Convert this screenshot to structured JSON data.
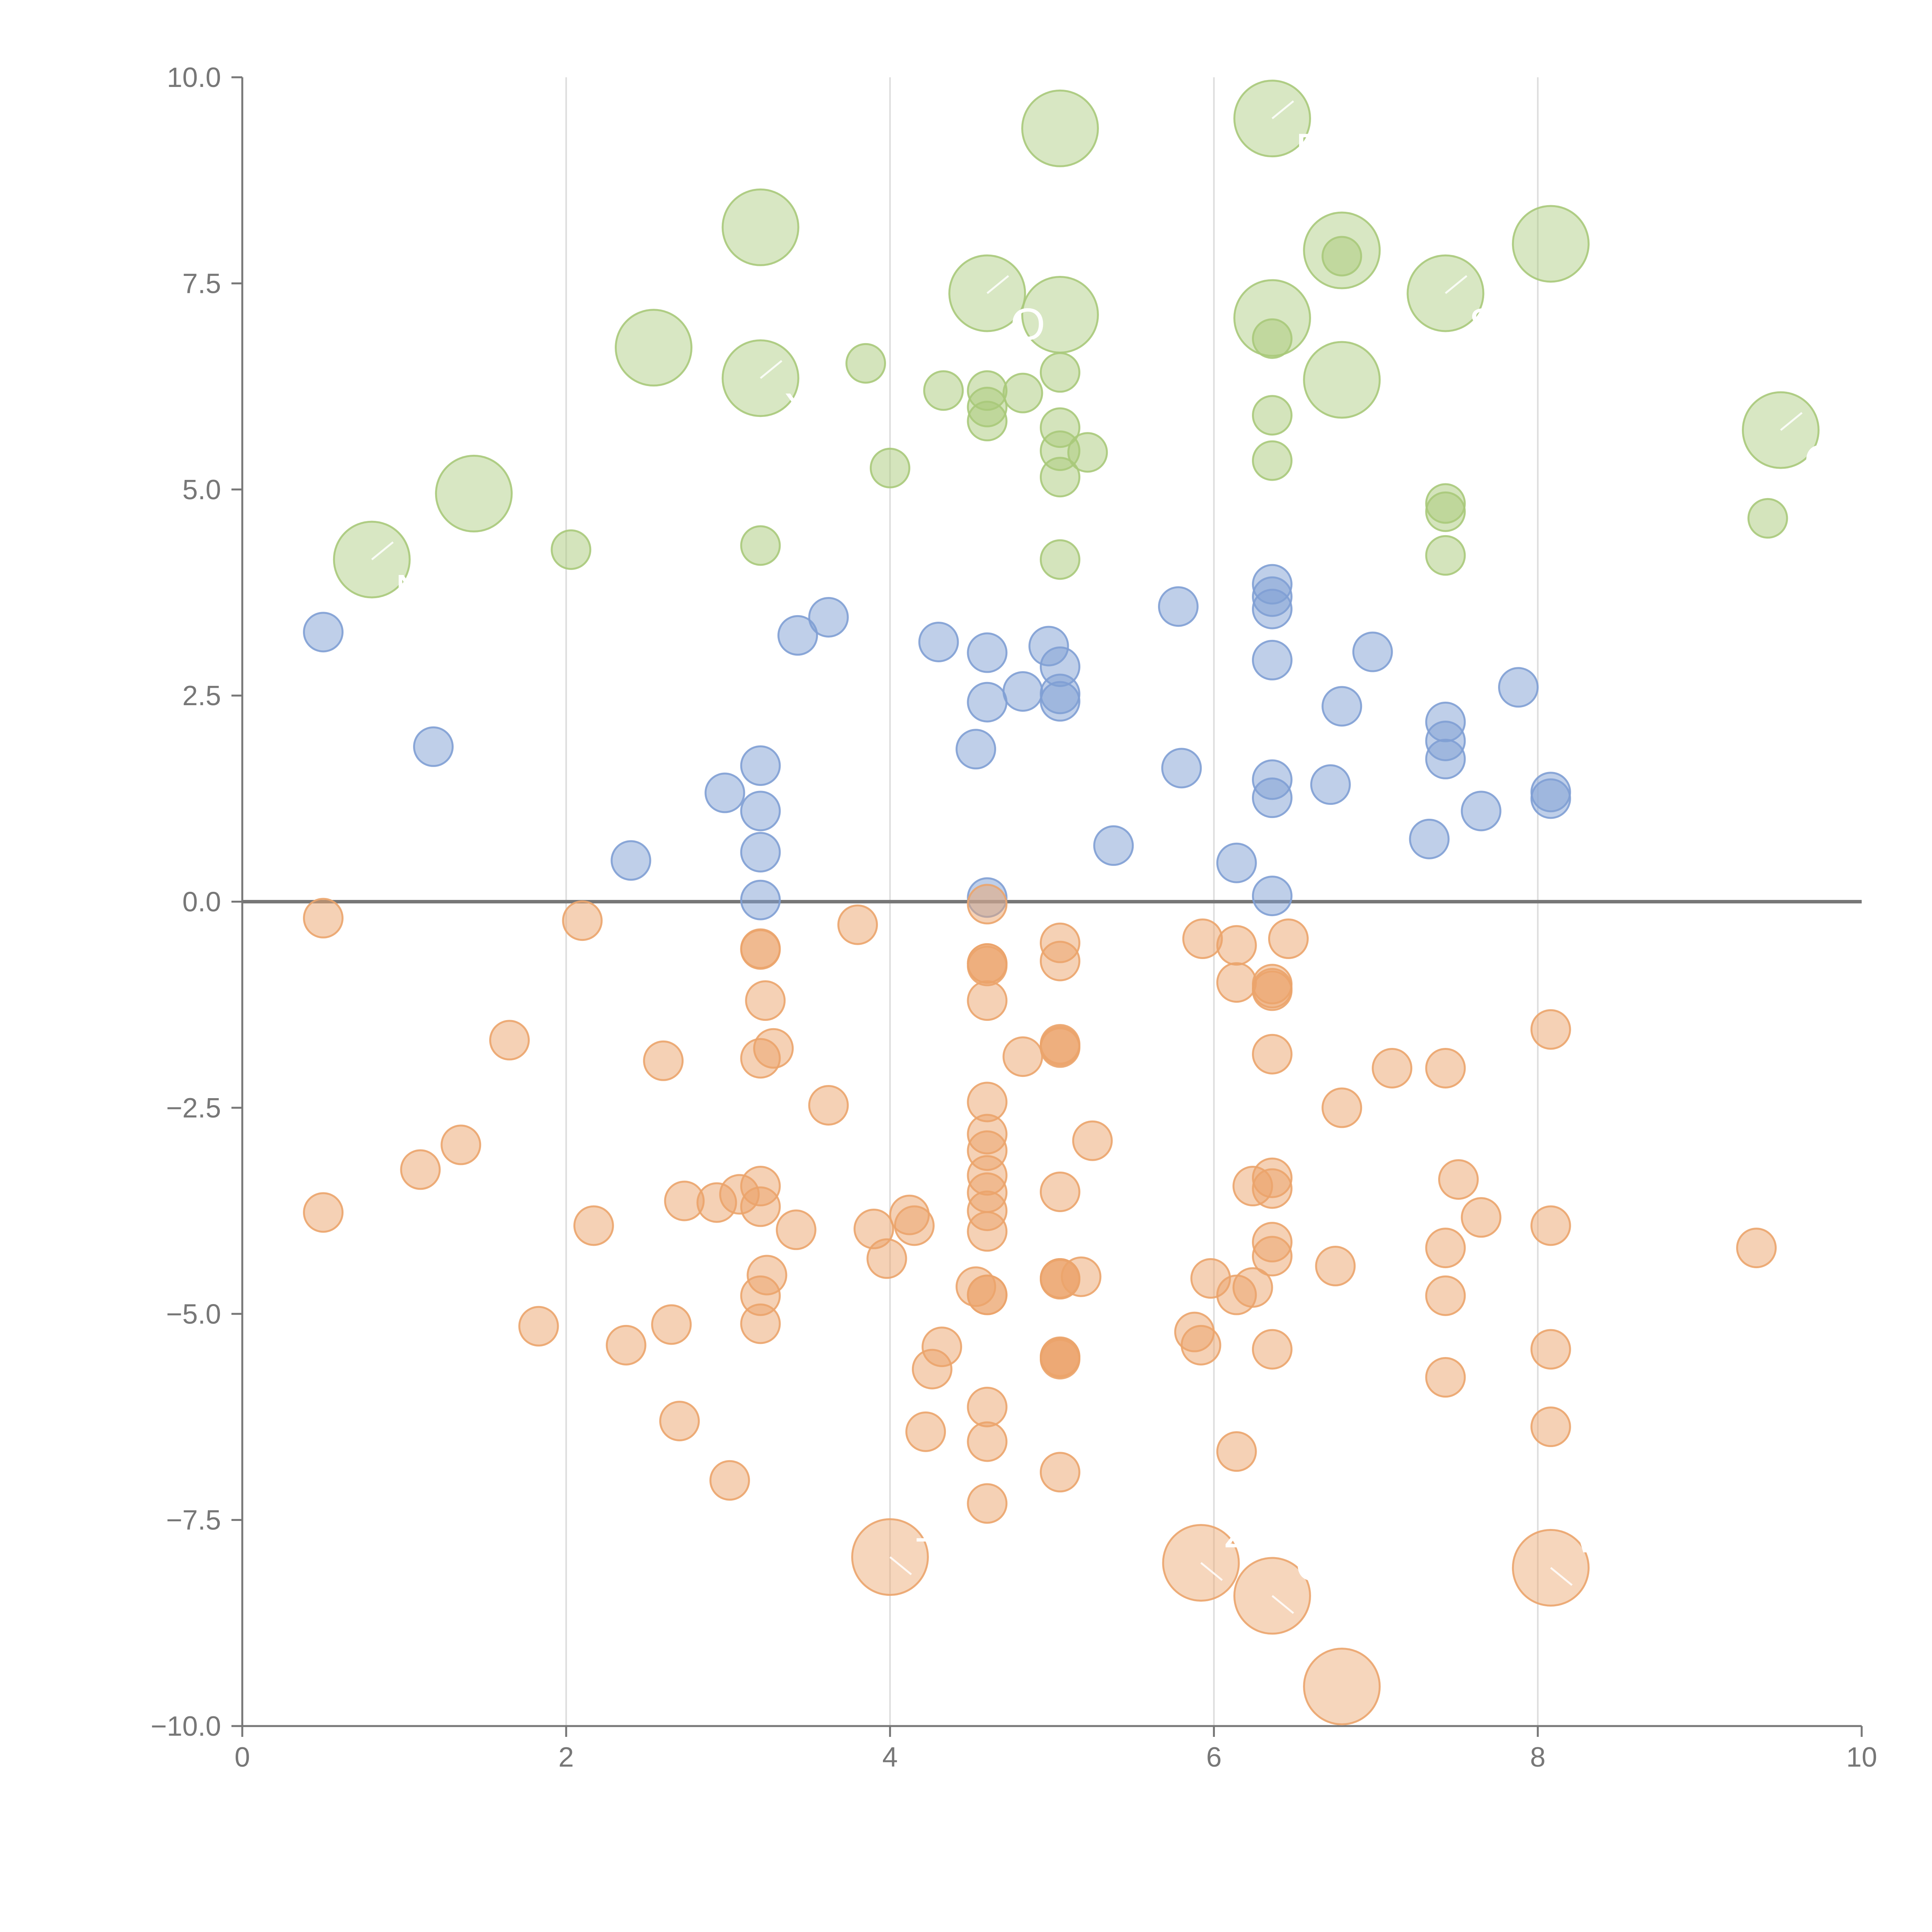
{
  "chart_data": {
    "type": "scatter",
    "title": "",
    "xlabel": "",
    "ylabel": "",
    "xlim": [
      0,
      10
    ],
    "ylim": [
      -10,
      10
    ],
    "x_ticks": [
      0,
      2,
      4,
      6,
      8,
      10
    ],
    "x_tick_labels": [
      "0",
      "2",
      "4",
      "6",
      "8",
      "10"
    ],
    "y_ticks": [
      10,
      7.5,
      5,
      2.5,
      0,
      -2.5,
      -5,
      -7.5,
      -10
    ],
    "y_tick_labels": [
      "10.0",
      "7.5",
      "5.0",
      "2.5",
      "0.0",
      "−2.5",
      "−5.0",
      "−7.5",
      "−10.0"
    ],
    "grid": "vertical",
    "reference_line_y": 0,
    "colors": {
      "green": "#a9c97a",
      "blue": "#7f9fd4",
      "orange": "#eba46b",
      "zero_line": "#777777",
      "grid": "#dddddd",
      "axis": "#777777"
    },
    "series": [
      {
        "name": "green",
        "x": [
          0.8,
          1.43,
          2.54,
          3.2,
          3.2,
          5.05,
          5.05,
          4.6,
          6.36,
          6.36,
          6.79,
          6.79,
          7.43,
          8.08,
          9.5,
          2.03,
          3.2,
          3.85,
          4.0,
          4.33,
          4.6,
          4.6,
          4.6,
          4.82,
          5.05,
          5.05,
          5.05,
          5.05,
          5.05,
          5.22,
          6.36,
          6.36,
          6.36,
          6.79,
          7.43,
          7.43,
          7.43,
          9.42
        ],
        "y": [
          4.15,
          4.95,
          6.72,
          8.18,
          6.35,
          9.38,
          7.12,
          7.38,
          9.5,
          7.08,
          7.9,
          6.33,
          7.38,
          7.98,
          5.72,
          4.27,
          4.32,
          6.53,
          5.26,
          6.2,
          6.2,
          6.0,
          5.83,
          6.17,
          6.42,
          5.75,
          5.47,
          5.15,
          4.15,
          5.45,
          6.83,
          5.9,
          5.35,
          7.83,
          4.83,
          4.73,
          4.2,
          4.65
        ],
        "sizes": [
          3,
          3,
          3,
          3,
          3,
          3,
          3,
          3,
          3,
          3,
          3,
          3,
          3,
          3,
          3,
          1,
          1,
          1,
          1,
          1,
          1,
          1,
          1,
          1,
          1,
          1,
          1,
          1,
          1,
          1,
          1,
          1,
          1,
          1,
          1,
          1,
          1,
          1
        ]
      },
      {
        "name": "blue",
        "x": [
          0.5,
          1.18,
          2.4,
          2.98,
          3.2,
          3.2,
          3.2,
          3.2,
          3.43,
          3.62,
          4.3,
          4.53,
          4.6,
          4.6,
          4.6,
          4.82,
          4.98,
          5.05,
          5.05,
          5.05,
          5.38,
          5.78,
          5.8,
          6.14,
          6.36,
          6.36,
          6.36,
          6.36,
          6.36,
          6.36,
          6.36,
          6.72,
          6.79,
          6.98,
          7.33,
          7.43,
          7.43,
          7.43,
          7.65,
          7.88,
          8.08,
          8.08
        ],
        "y": [
          3.27,
          1.88,
          0.5,
          1.32,
          1.65,
          1.1,
          0.6,
          0.02,
          3.23,
          3.45,
          3.15,
          1.85,
          3.02,
          2.42,
          0.05,
          2.55,
          3.1,
          2.85,
          2.52,
          2.43,
          0.68,
          3.58,
          1.62,
          0.47,
          3.85,
          3.7,
          3.55,
          2.93,
          1.48,
          1.26,
          0.07,
          1.42,
          2.37,
          3.03,
          0.76,
          2.18,
          1.95,
          1.73,
          1.1,
          2.6,
          1.33,
          1.25
        ],
        "sizes": [
          1,
          1,
          1,
          1,
          1,
          1,
          1,
          1,
          1,
          1,
          1,
          1,
          1,
          1,
          1,
          1,
          1,
          1,
          1,
          1,
          1,
          1,
          1,
          1,
          1,
          1,
          1,
          1,
          1,
          1,
          1,
          1,
          1,
          1,
          1,
          1,
          1,
          1,
          1,
          1,
          1,
          1
        ]
      },
      {
        "name": "orange",
        "x": [
          4.0,
          5.92,
          6.36,
          6.79,
          8.08,
          0.5,
          0.5,
          1.1,
          1.35,
          1.65,
          1.83,
          2.1,
          2.17,
          2.37,
          2.6,
          2.65,
          2.7,
          2.73,
          2.93,
          3.07,
          3.01,
          3.2,
          3.2,
          3.2,
          3.2,
          3.2,
          3.2,
          3.2,
          3.23,
          3.24,
          3.28,
          3.42,
          3.62,
          3.8,
          3.9,
          3.98,
          4.12,
          4.15,
          4.22,
          4.26,
          4.32,
          4.53,
          4.6,
          4.6,
          4.6,
          4.6,
          4.6,
          4.6,
          4.6,
          4.6,
          4.6,
          4.6,
          4.6,
          4.6,
          4.6,
          4.6,
          4.6,
          4.6,
          4.6,
          4.82,
          5.05,
          5.05,
          5.05,
          5.05,
          5.05,
          5.05,
          5.05,
          5.05,
          5.05,
          5.05,
          5.05,
          5.05,
          5.05,
          5.05,
          5.18,
          5.25,
          5.88,
          5.93,
          5.92,
          5.98,
          6.14,
          6.14,
          6.14,
          6.14,
          6.24,
          6.24,
          6.36,
          6.36,
          6.36,
          6.36,
          6.36,
          6.36,
          6.36,
          6.36,
          6.36,
          6.46,
          6.75,
          6.79,
          7.1,
          7.43,
          7.43,
          7.43,
          7.43,
          7.51,
          7.65,
          8.08,
          8.08,
          8.08,
          8.08,
          9.35
        ],
        "y": [
          -7.95,
          -8.02,
          -8.42,
          -9.52,
          -8.08,
          -0.2,
          -3.77,
          -3.25,
          -2.95,
          -1.68,
          -5.15,
          -0.23,
          -3.93,
          -5.38,
          -1.93,
          -5.13,
          -6.3,
          -3.63,
          -3.65,
          -3.55,
          -7.02,
          -0.57,
          -0.58,
          -1.9,
          -3.45,
          -3.7,
          -4.78,
          -5.12,
          -1.2,
          -4.53,
          -1.78,
          -3.98,
          -2.47,
          -0.28,
          -3.97,
          -4.33,
          -3.8,
          -3.93,
          -6.43,
          -5.67,
          -5.4,
          -4.67,
          -0.03,
          -0.75,
          -0.78,
          -1.2,
          -2.43,
          -2.82,
          -3.02,
          -3.32,
          -3.53,
          -3.75,
          -4.0,
          -4.77,
          -6.13,
          -6.55,
          -7.3,
          -0.75,
          -4.77,
          -1.88,
          -0.5,
          -0.72,
          -1.75,
          -1.77,
          -3.52,
          -4.57,
          -4.58,
          -5.52,
          -5.55,
          -6.92,
          -1.73,
          -4.57,
          -5.53,
          -5.53,
          -4.55,
          -2.9,
          -5.22,
          -0.45,
          -5.38,
          -4.57,
          -0.53,
          -0.98,
          -4.77,
          -6.67,
          -3.45,
          -4.68,
          -1.0,
          -1.05,
          -1.85,
          -3.35,
          -3.48,
          -4.13,
          -4.3,
          -5.43,
          -1.08,
          -0.45,
          -4.42,
          -2.5,
          -2.02,
          -2.02,
          -4.2,
          -4.78,
          -5.77,
          -3.37,
          -3.83,
          -1.55,
          -3.93,
          -5.43,
          -6.37,
          -4.2
        ],
        "sizes": [
          3,
          3,
          3,
          3,
          3,
          1,
          1,
          1,
          1,
          1,
          1,
          1,
          1,
          1,
          1,
          1,
          1,
          1,
          1,
          1,
          1,
          1,
          1,
          1,
          1,
          1,
          1,
          1,
          1,
          1,
          1,
          1,
          1,
          1,
          1,
          1,
          1,
          1,
          1,
          1,
          1,
          1,
          1,
          1,
          1,
          1,
          1,
          1,
          1,
          1,
          1,
          1,
          1,
          1,
          1,
          1,
          1,
          1,
          1,
          1,
          1,
          1,
          1,
          1,
          1,
          1,
          1,
          1,
          1,
          1,
          1,
          1,
          1,
          1,
          1,
          1,
          1,
          1,
          1,
          1,
          1,
          1,
          1,
          1,
          1,
          1,
          1,
          1,
          1,
          1,
          1,
          1,
          1,
          1,
          1,
          1,
          1,
          1,
          1,
          1,
          1,
          1,
          1,
          1,
          1,
          1,
          1,
          1,
          1,
          1
        ]
      }
    ],
    "annotations": [
      {
        "text": "N",
        "x": 0.8,
        "y": 4.15,
        "series": "green"
      },
      {
        "text": "X",
        "x": 3.2,
        "y": 6.35,
        "series": "green"
      },
      {
        "text": "O",
        "x": 4.6,
        "y": 7.38,
        "series": "green"
      },
      {
        "text": "D",
        "x": 6.36,
        "y": 9.5,
        "series": "green"
      },
      {
        "text": "S",
        "x": 7.43,
        "y": 7.38,
        "series": "green"
      },
      {
        "text": "CA",
        "x": 9.5,
        "y": 5.72,
        "series": "green"
      },
      {
        "text": "1",
        "x": 4.0,
        "y": -7.95,
        "series": "orange"
      },
      {
        "text": "Z",
        "x": 5.92,
        "y": -8.02,
        "series": "orange"
      },
      {
        "text": "C",
        "x": 6.36,
        "y": -8.42,
        "series": "orange"
      },
      {
        "text": "W",
        "x": 8.08,
        "y": -8.08,
        "series": "orange"
      }
    ]
  }
}
